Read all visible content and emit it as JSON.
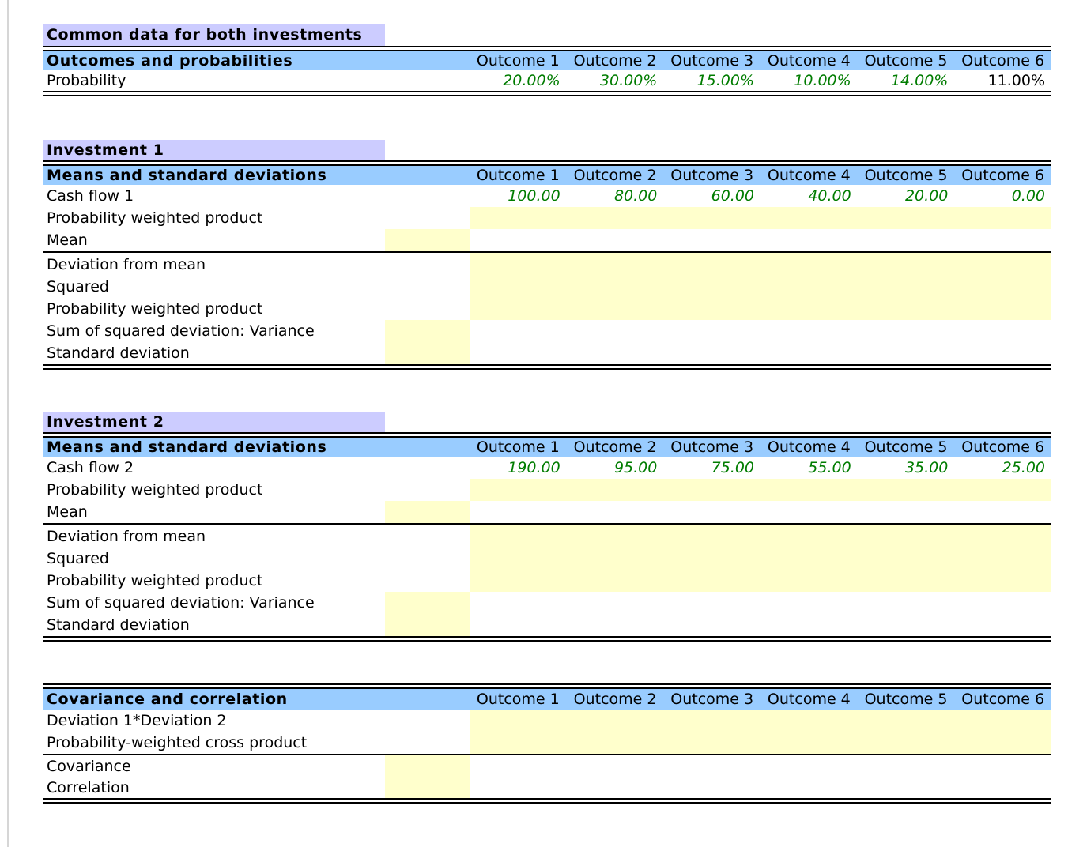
{
  "outcome_headers": [
    "Outcome 1",
    "Outcome 2",
    "Outcome 3",
    "Outcome 4",
    "Outcome 5",
    "Outcome 6"
  ],
  "common": {
    "section_title": "Common data for both investments",
    "table_header": "Outcomes and probabilities",
    "probability_label": "Probability",
    "probability_values": [
      "20.00%",
      "30.00%",
      "15.00%",
      "10.00%",
      "14.00%",
      "11.00%"
    ]
  },
  "investment1": {
    "section_title": "Investment 1",
    "table_header": "Means and standard deviations",
    "rows": {
      "cash_flow": "Cash flow 1",
      "pwp": "Probability weighted product",
      "mean": "Mean",
      "deviation": "Deviation from mean",
      "squared": "Squared",
      "pwp2": "Probability weighted product",
      "variance": "Sum of squared deviation: Variance",
      "std": "Standard deviation"
    },
    "cash_flow_values": [
      "100.00",
      "80.00",
      "60.00",
      "40.00",
      "20.00",
      "0.00"
    ]
  },
  "investment2": {
    "section_title": "Investment 2",
    "table_header": "Means and standard deviations",
    "rows": {
      "cash_flow": "Cash flow 2",
      "pwp": "Probability weighted product",
      "mean": "Mean",
      "deviation": "Deviation from mean",
      "squared": "Squared",
      "pwp2": "Probability weighted product",
      "variance": "Sum of squared deviation: Variance",
      "std": "Standard deviation"
    },
    "cash_flow_values": [
      "190.00",
      "95.00",
      "75.00",
      "55.00",
      "35.00",
      "25.00"
    ]
  },
  "covariance": {
    "table_header": "Covariance and correlation",
    "rows": {
      "dev_product": "Deviation 1*Deviation 2",
      "cross_product": "Probability-weighted cross product",
      "covariance": "Covariance",
      "correlation": "Correlation"
    }
  },
  "colors": {
    "section_title_bg": "#ccccff",
    "table_header_bg": "#99ccff",
    "input_cell_bg": "#ffffcc",
    "input_value_text": "#007c00"
  }
}
